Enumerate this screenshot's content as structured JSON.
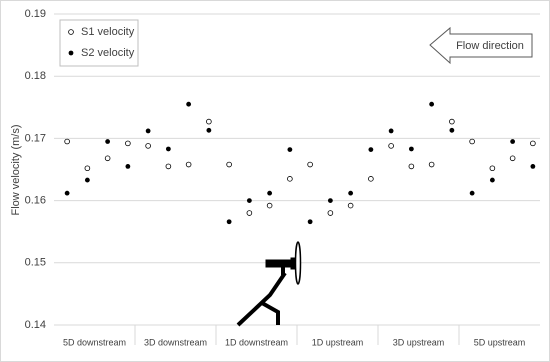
{
  "chart_data": {
    "type": "scatter",
    "y_label": "Flow velocity (m/s)",
    "annotation": "Flow direction",
    "categories": [
      "5D downstream",
      "3D downstream",
      "1D downstream",
      "1D upstream",
      "3D upstream",
      "5D upstream"
    ],
    "series": [
      {
        "name": "S1 velocity",
        "color": "#000000",
        "filled": false,
        "values": [
          [
            0.1695,
            0.1652,
            0.1668,
            0.1692
          ],
          [
            0.1688,
            0.1655,
            0.1658,
            0.1727
          ],
          [
            0.1658,
            0.158,
            0.1592,
            0.1635
          ],
          [
            0.1658,
            0.158,
            0.1592,
            0.1635
          ],
          [
            0.1688,
            0.1655,
            0.1658,
            0.1727
          ],
          [
            0.1695,
            0.1652,
            0.1668,
            0.1692
          ]
        ]
      },
      {
        "name": "S2 velocity",
        "color": "#000000",
        "filled": true,
        "values": [
          [
            0.1612,
            0.1633,
            0.1695,
            0.1655
          ],
          [
            0.1712,
            0.1683,
            0.1755,
            0.1713
          ],
          [
            0.1566,
            0.16,
            0.1612,
            0.1682
          ],
          [
            0.1566,
            0.16,
            0.1612,
            0.1682
          ],
          [
            0.1712,
            0.1683,
            0.1755,
            0.1713
          ],
          [
            0.1612,
            0.1633,
            0.1695,
            0.1655
          ]
        ]
      }
    ],
    "ylim": [
      0.14,
      0.19
    ],
    "yticks": [
      0.14,
      0.15,
      0.16,
      0.17,
      0.18,
      0.19
    ],
    "grid": true,
    "legend": "upper left"
  }
}
